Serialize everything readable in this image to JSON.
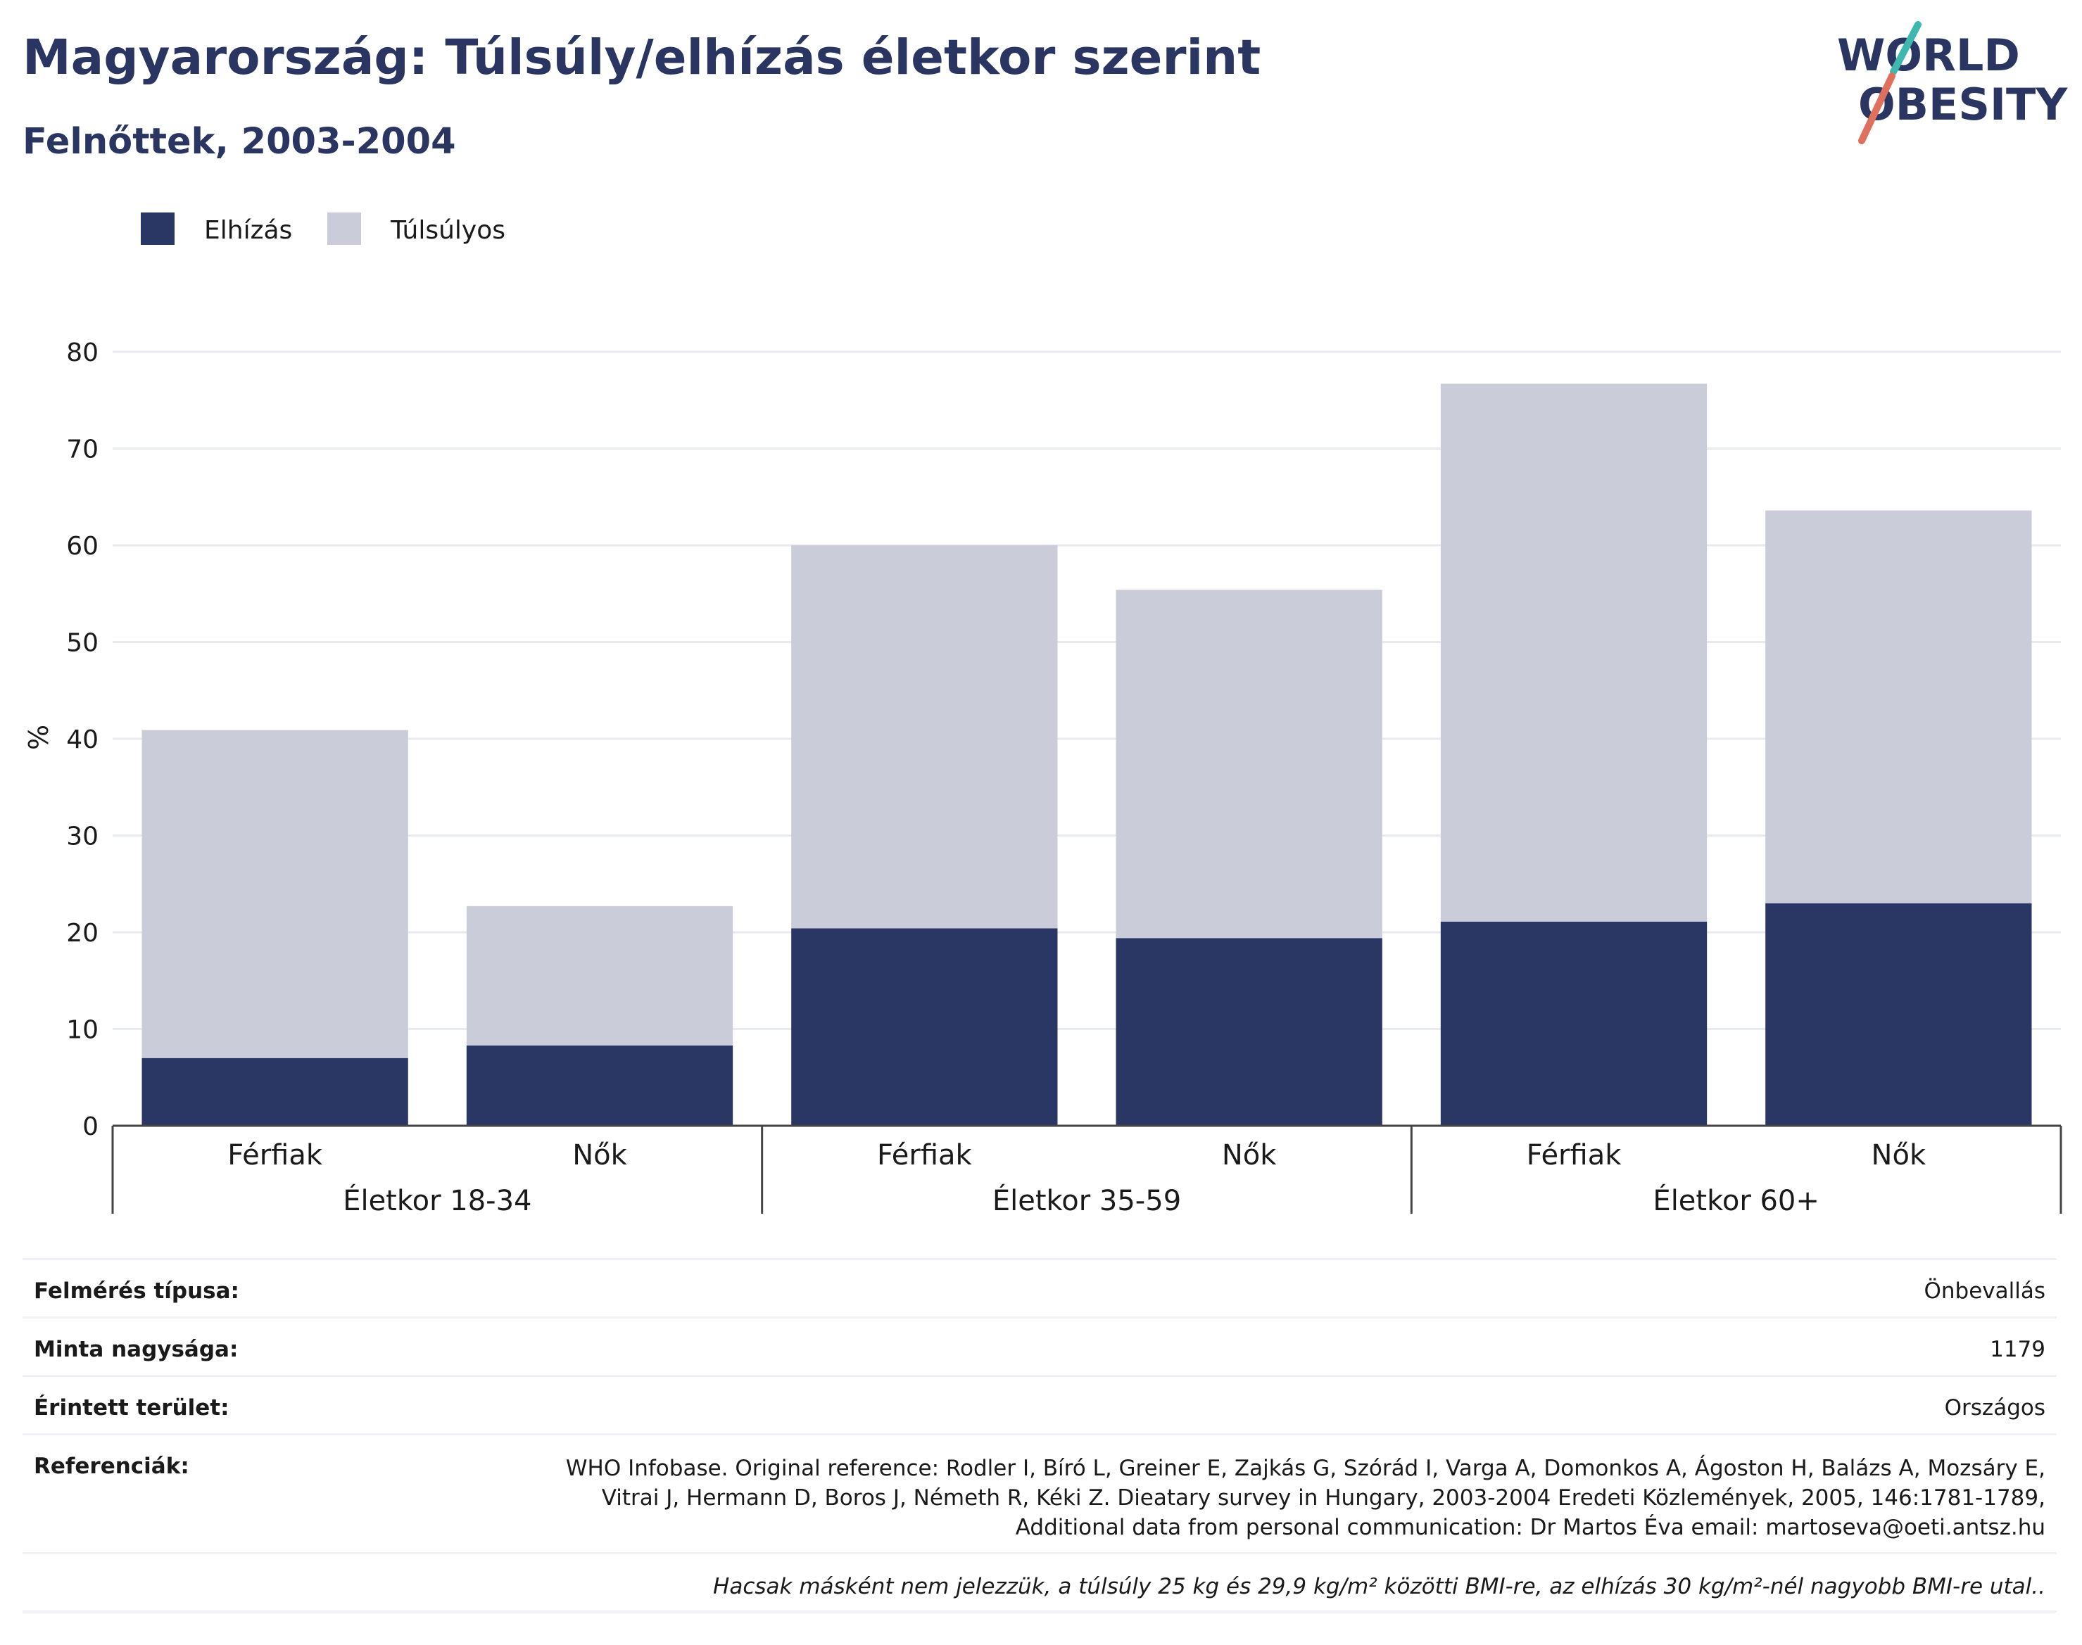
{
  "header": {
    "title": "Magyarország: Túlsúly/elhízás életkor szerint",
    "subtitle": "Felnőttek, 2003-2004"
  },
  "logo": {
    "line1": "WORLD",
    "line2": "OBESITY"
  },
  "colors": {
    "obesity": "#2a3663",
    "overweight": "#cacdd9",
    "text": "#2a3561",
    "grid": "#e8eaf0"
  },
  "chart_data": {
    "type": "bar",
    "stacked": true,
    "ylabel": "%",
    "ylim": [
      0,
      80
    ],
    "yticks": [
      0,
      10,
      20,
      30,
      40,
      50,
      60,
      70,
      80
    ],
    "grid": true,
    "legend_position": "top-left",
    "categories": [
      "Férfiak",
      "Nők",
      "Férfiak",
      "Nők",
      "Férfiak",
      "Nők"
    ],
    "groups": [
      {
        "label": "Életkor 18-34",
        "span": 2
      },
      {
        "label": "Életkor 35-59",
        "span": 2
      },
      {
        "label": "Életkor 60+",
        "span": 2
      }
    ],
    "series": [
      {
        "name": "Elhízás",
        "color": "#2a3663",
        "values": [
          7.0,
          8.3,
          20.4,
          19.4,
          21.1,
          23.0
        ]
      },
      {
        "name": "Túlsúlyos",
        "color": "#cacdd9",
        "values": [
          33.9,
          14.4,
          39.6,
          36.0,
          55.6,
          40.6
        ]
      }
    ]
  },
  "info": {
    "rows": [
      {
        "label": "Felmérés típusa:",
        "value": "Önbevallás"
      },
      {
        "label": "Minta nagysága:",
        "value": "1179"
      },
      {
        "label": "Érintett terület:",
        "value": "Országos"
      }
    ],
    "ref_label": "Referenciák:",
    "ref_lines": [
      "WHO Infobase. Original reference: Rodler I, Bíró L, Greiner E, Zajkás G, Szórád I, Varga A, Domonkos A, Ágoston H, Balázs A, Mozsáry E,",
      "Vitrai J, Hermann D, Boros J, Németh R, Kéki Z. Dieatary survey in Hungary, 2003-2004 Eredeti Közlemények, 2005, 146:1781-1789,",
      "Additional data from personal communication: Dr Martos Éva email: martoseva@oeti.antsz.hu"
    ],
    "note": "Hacsak másként nem jelezzük, a túlsúly 25 kg és 29,9 kg/m² közötti BMI-re, az elhízás 30 kg/m²-nél nagyobb BMI-re utal.."
  }
}
